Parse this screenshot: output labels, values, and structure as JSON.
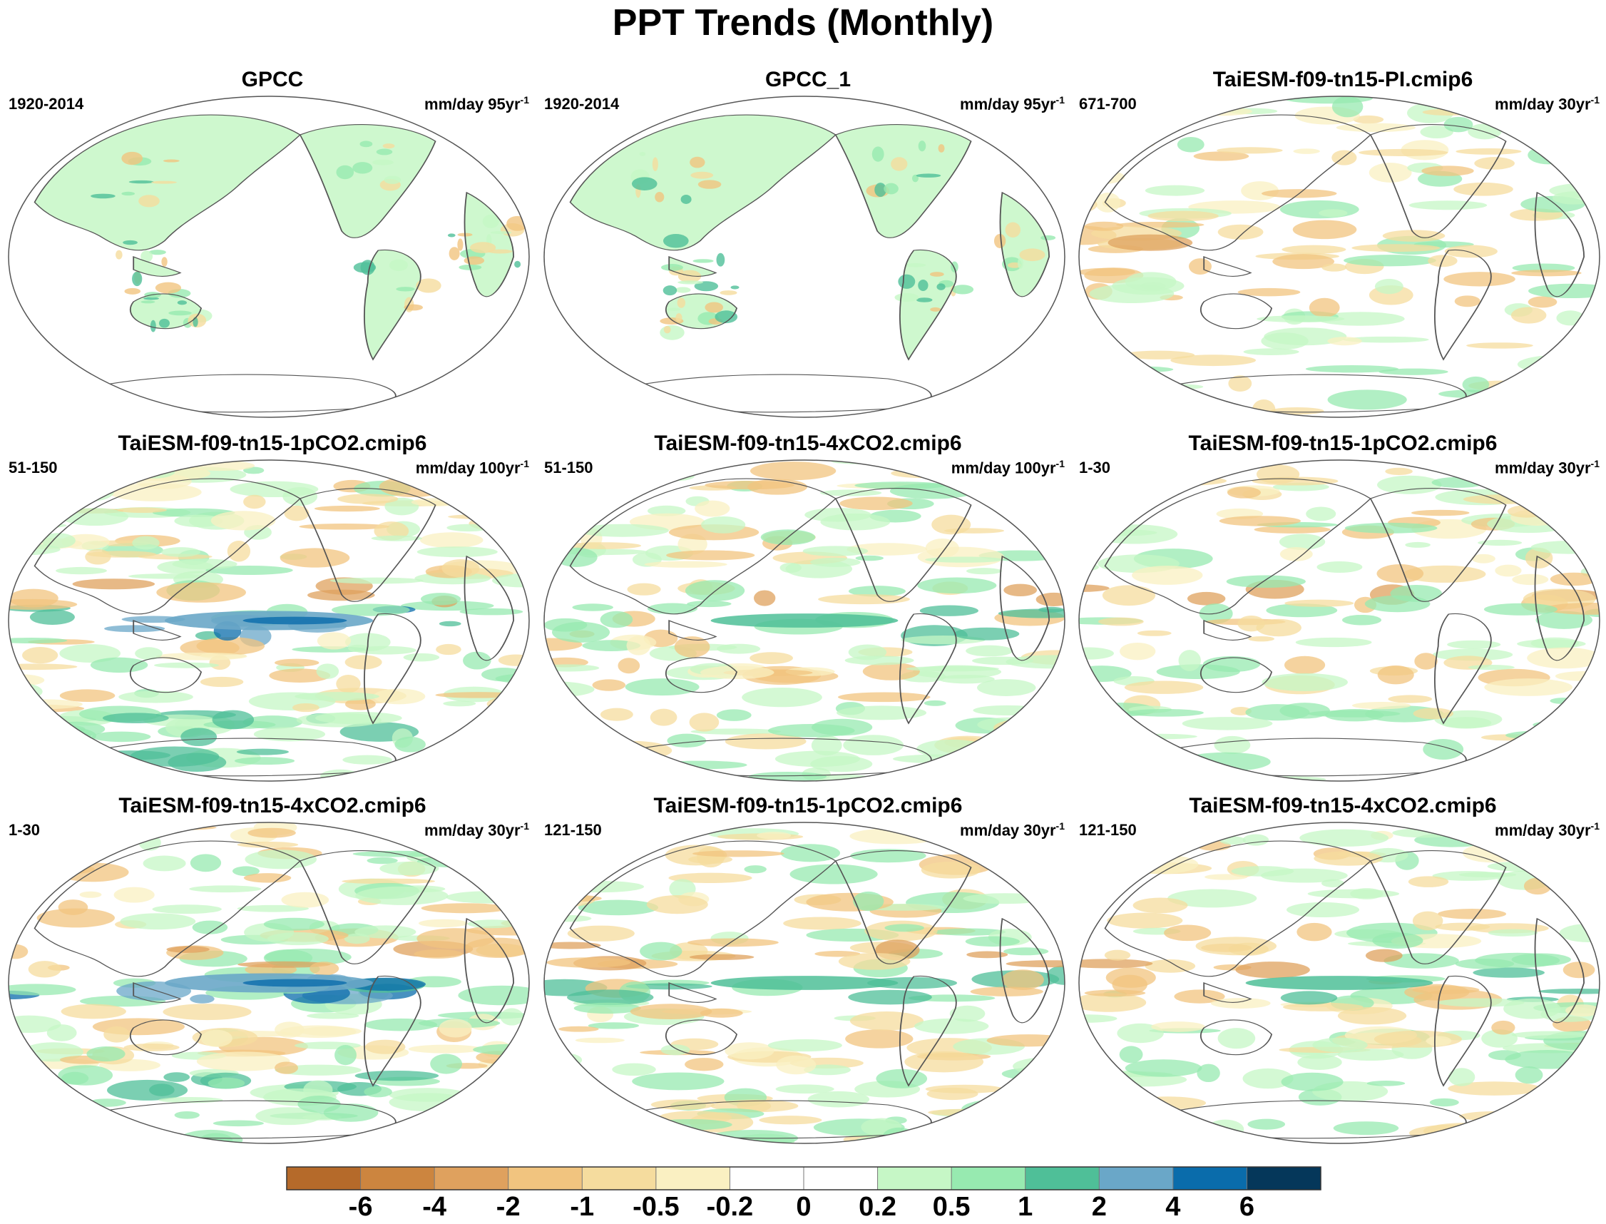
{
  "title": "PPT Trends (Monthly)",
  "panels": [
    {
      "title": "GPCC",
      "period": "1920-2014",
      "units": "mm/day 95yr",
      "units_sup": "-1"
    },
    {
      "title": "GPCC_1",
      "period": "1920-2014",
      "units": "mm/day 95yr",
      "units_sup": "-1"
    },
    {
      "title": "TaiESM-f09-tn15-PI.cmip6",
      "period": "671-700",
      "units": "mm/day 30yr",
      "units_sup": "-1"
    },
    {
      "title": "TaiESM-f09-tn15-1pCO2.cmip6",
      "period": "51-150",
      "units": "mm/day 100yr",
      "units_sup": "-1"
    },
    {
      "title": "TaiESM-f09-tn15-4xCO2.cmip6",
      "period": "51-150",
      "units": "mm/day 100yr",
      "units_sup": "-1"
    },
    {
      "title": "TaiESM-f09-tn15-1pCO2.cmip6",
      "period": "1-30",
      "units": "mm/day 30yr",
      "units_sup": "-1"
    },
    {
      "title": "TaiESM-f09-tn15-4xCO2.cmip6",
      "period": "1-30",
      "units": "mm/day 30yr",
      "units_sup": "-1"
    },
    {
      "title": "TaiESM-f09-tn15-1pCO2.cmip6",
      "period": "121-150",
      "units": "mm/day 30yr",
      "units_sup": "-1"
    },
    {
      "title": "TaiESM-f09-tn15-4xCO2.cmip6",
      "period": "121-150",
      "units": "mm/day 30yr",
      "units_sup": "-1"
    }
  ],
  "colorbar": {
    "colors": [
      "#b56a2a",
      "#cc853f",
      "#dfa15e",
      "#f1c47f",
      "#f5dc9e",
      "#faf0c2",
      "#ffffff",
      "#ffffff",
      "#c6f7c6",
      "#97eab0",
      "#4fbf98",
      "#6aa7c8",
      "#0a6cab",
      "#05375a"
    ],
    "labels": [
      "-6",
      "-4",
      "-2",
      "-1",
      "-0.5",
      "-0.2",
      "0",
      "0.2",
      "0.5",
      "1",
      "2",
      "4",
      "6"
    ]
  }
}
